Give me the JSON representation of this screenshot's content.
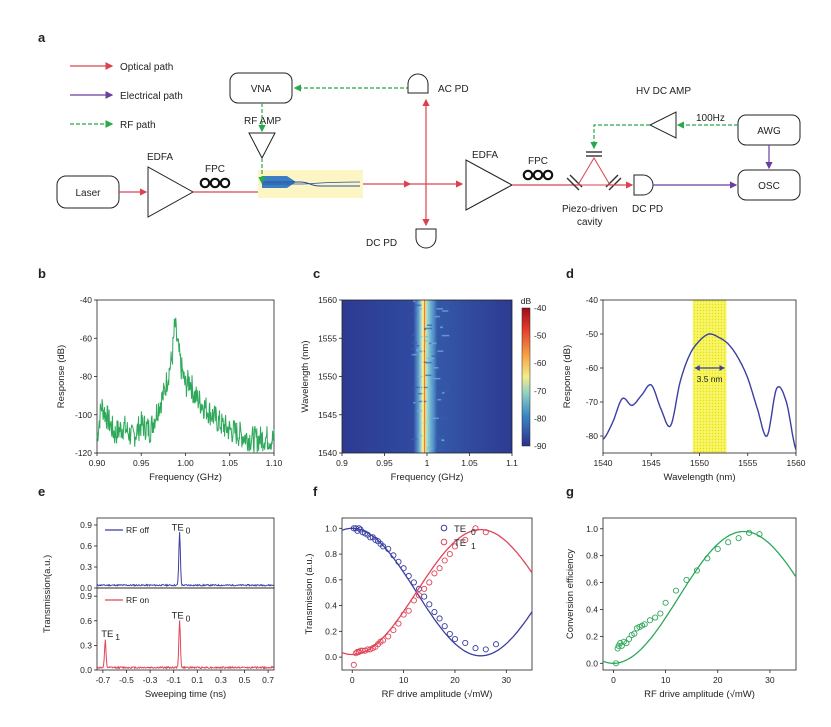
{
  "panels": {
    "a": "a",
    "b": "b",
    "c": "c",
    "d": "d",
    "e": "e",
    "f": "f",
    "g": "g"
  },
  "diagram": {
    "legend": [
      "Optical path",
      "Electrical path",
      "RF path"
    ],
    "laser": "Laser",
    "edfa1": "EDFA",
    "fpc1": "FPC",
    "rf_amp": "RF AMP",
    "vna": "VNA",
    "ac_pd": "AC PD",
    "dc_pd1": "DC PD",
    "edfa2": "EDFA",
    "fpc2": "FPC",
    "piezo": "Piezo-driven",
    "cavity": "cavity",
    "dc_pd2": "DC PD",
    "hv_amp": "HV DC AMP",
    "freq": "100Hz",
    "awg": "AWG",
    "osc": "OSC",
    "colors": {
      "optical": "#d9434f",
      "electrical": "#6a3ea1",
      "rf": "#2aa84a"
    }
  },
  "chart_data": [
    {
      "panel": "b",
      "type": "line",
      "xlabel": "Frequency (GHz)",
      "ylabel": "Response (dB)",
      "xlim": [
        0.9,
        1.1
      ],
      "ylim": [
        -120,
        -40
      ],
      "xticks": [
        "0.90",
        "0.95",
        "1.00",
        "1.05",
        "1.10"
      ],
      "yticks": [
        "-40",
        "-60",
        "-80",
        "-100",
        "-120"
      ],
      "series": [
        {
          "color": "#2ea85a",
          "x": [
            0.9,
            0.905,
            0.91,
            0.92,
            0.93,
            0.94,
            0.95,
            0.96,
            0.97,
            0.975,
            0.98,
            0.985,
            0.988,
            0.99,
            0.995,
            1.0,
            1.005,
            1.01,
            1.02,
            1.03,
            1.04,
            1.05,
            1.06,
            1.07,
            1.08,
            1.09,
            1.1
          ],
          "y": [
            -112,
            -95,
            -100,
            -110,
            -106,
            -112,
            -105,
            -108,
            -95,
            -90,
            -80,
            -70,
            -52,
            -60,
            -75,
            -85,
            -82,
            -90,
            -95,
            -100,
            -105,
            -108,
            -110,
            -112,
            -113,
            -112,
            -113
          ]
        }
      ]
    },
    {
      "panel": "c",
      "type": "heatmap",
      "xlabel": "Frequency (GHz)",
      "ylabel": "Wavelength (nm)",
      "xlim": [
        0.9,
        1.1
      ],
      "ylim": [
        1540,
        1560
      ],
      "xticks": [
        "0.9",
        "0.95",
        "1",
        "1.05",
        "1.1"
      ],
      "yticks": [
        "1560",
        "1555",
        "1550",
        "1545",
        "1540"
      ],
      "colorbar": {
        "label": "dB",
        "ticks": [
          "-40",
          "-50",
          "-60",
          "-70",
          "-80",
          "-90"
        ],
        "range": [
          -90,
          -40
        ]
      },
      "peak_frequency": 0.99
    },
    {
      "panel": "d",
      "type": "line",
      "xlabel": "Wavelength (nm)",
      "ylabel": "Response (dB)",
      "xlim": [
        1540,
        1560
      ],
      "ylim": [
        -85,
        -40
      ],
      "xticks": [
        "1540",
        "1545",
        "1550",
        "1555",
        "1560"
      ],
      "yticks": [
        "-40",
        "-50",
        "-60",
        "-70",
        "-80"
      ],
      "annotation": "3.5 nm",
      "band": [
        1549.3,
        1552.8
      ],
      "series": [
        {
          "color": "#3b3fa0",
          "x": [
            1540,
            1541,
            1542,
            1543,
            1544,
            1545,
            1546,
            1547,
            1548,
            1549,
            1550,
            1551,
            1552,
            1553,
            1554,
            1555,
            1556,
            1557,
            1558,
            1559,
            1560
          ],
          "y": [
            -81,
            -76,
            -69,
            -71,
            -68,
            -65,
            -72,
            -77,
            -64,
            -56,
            -52,
            -50,
            -51,
            -53,
            -57,
            -63,
            -72,
            -80,
            -66,
            -70,
            -84
          ]
        }
      ]
    },
    {
      "panel": "e",
      "type": "line",
      "xlabel": "Sweeping time (ns)",
      "ylabel": "Transmission(a.u.)",
      "xlim": [
        -0.75,
        0.75
      ],
      "xticks": [
        "-0.7",
        "-0.5",
        "-0.3",
        "-0.1",
        "0.1",
        "0.3",
        "0.5",
        "0.7"
      ],
      "yticks": [
        "0.0",
        "0.3",
        "0.6",
        "0.9"
      ],
      "series": [
        {
          "name": "RF off",
          "color": "#3b3fa0",
          "peak_label": "TE",
          "peak_sub": "0",
          "peaks": [
            {
              "x": -0.05,
              "y": 0.75
            }
          ],
          "baseline": 0.04
        },
        {
          "name": "RF on",
          "color": "#e0455a",
          "peak_label": "TE",
          "peak_sub": "0",
          "peak2_label": "TE",
          "peak2_sub": "1",
          "peaks": [
            {
              "x": -0.05,
              "y": 0.57
            },
            {
              "x": -0.68,
              "y": 0.33
            }
          ],
          "baseline": 0.03
        }
      ]
    },
    {
      "panel": "f",
      "type": "scatter",
      "xlabel": "RF drive amplitude (√mW)",
      "ylabel": "Transmission (a.u.)",
      "xlim": [
        -2,
        35
      ],
      "ylim": [
        -0.1,
        1.08
      ],
      "xticks": [
        "0",
        "10",
        "20",
        "30"
      ],
      "yticks": [
        "0.0",
        "0.2",
        "0.4",
        "0.6",
        "0.8",
        "1.0"
      ],
      "series": [
        {
          "name": "TE",
          "sub": "0",
          "color": "#3b3fa0",
          "x": [
            0.3,
            0.7,
            1.0,
            1.3,
            1.6,
            2.0,
            2.5,
            3.0,
            3.5,
            4.0,
            4.5,
            5,
            5.5,
            6,
            7,
            8,
            9,
            10,
            11,
            12,
            13,
            14,
            15,
            16,
            17,
            18,
            19,
            20,
            22,
            24,
            26,
            28
          ],
          "y": [
            1.0,
            1.0,
            0.98,
            1.0,
            0.99,
            0.97,
            0.96,
            0.95,
            0.93,
            0.93,
            0.91,
            0.9,
            0.88,
            0.86,
            0.84,
            0.79,
            0.74,
            0.69,
            0.63,
            0.58,
            0.53,
            0.47,
            0.41,
            0.35,
            0.3,
            0.24,
            0.18,
            0.14,
            0.11,
            0.07,
            0.06,
            0.1
          ]
        },
        {
          "name": "TE",
          "sub": "1",
          "color": "#e0455a",
          "x": [
            0.3,
            0.7,
            1.0,
            1.3,
            1.6,
            2.0,
            2.5,
            3.0,
            3.5,
            4.0,
            4.5,
            5,
            5.5,
            6,
            7,
            8,
            9,
            10,
            11,
            12,
            13,
            14,
            15,
            16,
            17,
            18,
            19,
            20,
            22,
            24,
            26
          ],
          "y": [
            -0.06,
            0.03,
            0.04,
            0.04,
            0.05,
            0.05,
            0.05,
            0.06,
            0.06,
            0.07,
            0.08,
            0.1,
            0.12,
            0.13,
            0.16,
            0.21,
            0.26,
            0.33,
            0.36,
            0.44,
            0.48,
            0.53,
            0.58,
            0.65,
            0.69,
            0.75,
            0.8,
            0.86,
            0.91,
            1.0,
            0.97
          ]
        }
      ]
    },
    {
      "panel": "g",
      "type": "scatter",
      "xlabel": "RF drive amplitude (√mW)",
      "ylabel": "Conversion efficiency",
      "xlim": [
        -2,
        35
      ],
      "ylim": [
        -0.05,
        1.08
      ],
      "xticks": [
        "0",
        "10",
        "20",
        "30"
      ],
      "yticks": [
        "0.0",
        "0.2",
        "0.4",
        "0.6",
        "0.8",
        "1.0"
      ],
      "series": [
        {
          "color": "#2ea85a",
          "x": [
            0.5,
            0.8,
            1.0,
            1.3,
            1.6,
            2.0,
            2.5,
            3.0,
            3.5,
            4.0,
            4.5,
            5,
            5.5,
            6,
            7,
            8,
            9,
            10,
            12,
            14,
            16,
            18,
            20,
            22,
            24,
            26,
            28
          ],
          "y": [
            0.0,
            0.11,
            0.13,
            0.15,
            0.13,
            0.16,
            0.15,
            0.18,
            0.21,
            0.22,
            0.26,
            0.27,
            0.28,
            0.29,
            0.32,
            0.34,
            0.37,
            0.45,
            0.54,
            0.62,
            0.69,
            0.78,
            0.85,
            0.9,
            0.93,
            0.97,
            0.96
          ]
        }
      ]
    }
  ]
}
